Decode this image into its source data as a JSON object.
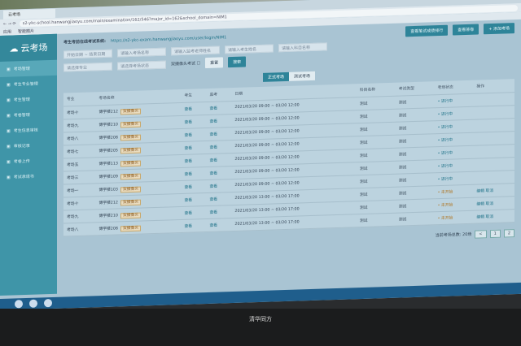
{
  "browser": {
    "tab": "云考场",
    "url": "s2-ykc-school.hanwangjiaoyu.com/main/examination/162/546?major_id=162&school_domain=NIM1",
    "bookmarks": [
      "应用",
      "智能图片"
    ]
  },
  "app": {
    "logo": "云考场",
    "system_label": "考生考前在线考试系统:",
    "system_url": "https://s2-ykc-exam.hanwangjiaoyu.com/user/login/NIM1"
  },
  "sidebar": {
    "items": [
      {
        "label": "考场管理",
        "active": true
      },
      {
        "label": "考生专业管理"
      },
      {
        "label": "考生管理"
      },
      {
        "label": "考卷管理"
      },
      {
        "label": "考生信息审核"
      },
      {
        "label": "审核记录"
      },
      {
        "label": "考卷上传"
      },
      {
        "label": "考试承诺书"
      }
    ]
  },
  "filters": {
    "start_date": "开始日期",
    "end_date": "结束日期",
    "room_name": "请输入考场名称",
    "teacher_name": "请输入监考老师姓名",
    "student_name": "请输入考生姓名",
    "subject_name": "请输入科目名称",
    "major": "请选择专业",
    "status": "请选择考场状态",
    "double_camera": "双摄像头考试",
    "reset": "重置",
    "search": "搜索"
  },
  "actions": {
    "rank": "查看笔试成绩排行",
    "review": "查看答卷",
    "add": "+ 添加考场"
  },
  "tabs": [
    {
      "label": "正式考场",
      "active": true
    },
    {
      "label": "测试考场"
    }
  ],
  "table": {
    "headers": [
      "专业",
      "考场名称",
      "考生",
      "监考",
      "日期",
      "科目名称",
      "考试类型",
      "考场状态",
      "操作"
    ],
    "view": "查看",
    "tag": "双摄像头",
    "edit": "编辑",
    "cancel": "取消",
    "rows": [
      {
        "major": "考场十",
        "room": "博学楼212",
        "date": "2021/03/20 09:00 ~ 03/20 12:00",
        "subject": "测试",
        "type": "测试",
        "status": "进行中",
        "state": "run"
      },
      {
        "major": "考场九",
        "room": "博学楼210",
        "date": "2021/03/20 09:00 ~ 03/20 12:00",
        "subject": "测试",
        "type": "测试",
        "status": "进行中",
        "state": "run"
      },
      {
        "major": "考场八",
        "room": "博学楼208",
        "date": "2021/03/20 09:00 ~ 03/20 12:00",
        "subject": "测试",
        "type": "测试",
        "status": "进行中",
        "state": "run"
      },
      {
        "major": "考场七",
        "room": "博学楼205",
        "date": "2021/03/20 09:00 ~ 03/20 12:00",
        "subject": "测试",
        "type": "测试",
        "status": "进行中",
        "state": "run"
      },
      {
        "major": "考场五",
        "room": "博学楼113",
        "date": "2021/03/20 09:00 ~ 03/20 12:00",
        "subject": "测试",
        "type": "测试",
        "status": "进行中",
        "state": "run"
      },
      {
        "major": "考场三",
        "room": "博学楼109",
        "date": "2021/03/20 09:00 ~ 03/20 12:00",
        "subject": "测试",
        "type": "测试",
        "status": "进行中",
        "state": "run"
      },
      {
        "major": "考场一",
        "room": "博学楼103",
        "date": "2021/03/20 09:00 ~ 03/20 12:00",
        "subject": "测试",
        "type": "测试",
        "status": "进行中",
        "state": "run"
      },
      {
        "major": "考场十",
        "room": "博学楼212",
        "date": "2021/03/20 13:00 ~ 03/20 17:00",
        "subject": "测试",
        "type": "测试",
        "status": "未开始",
        "state": "wait"
      },
      {
        "major": "考场九",
        "room": "博学楼210",
        "date": "2021/03/20 13:00 ~ 03/20 17:00",
        "subject": "测试",
        "type": "测试",
        "status": "未开始",
        "state": "wait"
      },
      {
        "major": "考场八",
        "room": "博学楼208",
        "date": "2021/03/20 13:00 ~ 03/20 17:00",
        "subject": "测试",
        "type": "测试",
        "status": "未开始",
        "state": "wait"
      }
    ]
  },
  "pager": {
    "total": "当前考场总数: 20场",
    "pages": [
      "1",
      "2"
    ],
    "prev": "<"
  },
  "monitor": {
    "brand": "清华同方"
  }
}
